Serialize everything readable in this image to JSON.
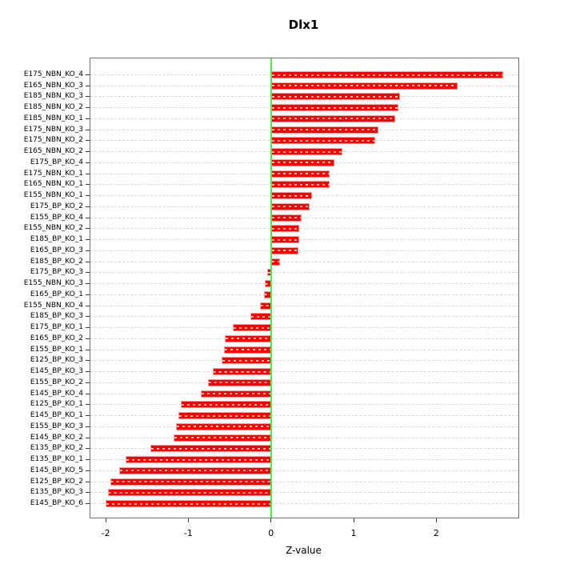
{
  "chart_data": {
    "type": "bar",
    "orientation": "horizontal",
    "title": "Dlx1",
    "xlabel": "Z-value",
    "xlim": [
      -2.185,
      2.994
    ],
    "x_ticks": [
      "-2",
      "-1",
      "0",
      "1",
      "2"
    ],
    "x_tick_values": [
      -2,
      -1,
      0,
      1,
      2
    ],
    "zero_line_value": 0,
    "grid": "dashed-horizontal-per-row",
    "legend": "none",
    "colors": {
      "bar_fill": "#ff0000",
      "bar_border": "#ffa0a0",
      "zero_line": "#46ef46",
      "grid_line": "#d8d8d8",
      "box_border": "#6f6f6f",
      "text": "#000000"
    },
    "categories": [
      "E175_NBN_KO_4",
      "E165_NBN_KO_3",
      "E185_NBN_KO_3",
      "E185_NBN_KO_2",
      "E185_NBN_KO_1",
      "E175_NBN_KO_3",
      "E175_NBN_KO_2",
      "E165_NBN_KO_2",
      "E175_BP_KO_4",
      "E175_NBN_KO_1",
      "E165_NBN_KO_1",
      "E155_NBN_KO_1",
      "E175_BP_KO_2",
      "E155_BP_KO_4",
      "E155_NBN_KO_2",
      "E185_BP_KO_1",
      "E165_BP_KO_3",
      "E185_BP_KO_2",
      "E175_BP_KO_3",
      "E155_NBN_KO_3",
      "E165_BP_KO_1",
      "E155_NBN_KO_4",
      "E185_BP_KO_3",
      "E175_BP_KO_1",
      "E165_BP_KO_2",
      "E155_BP_KO_1",
      "E125_BP_KO_3",
      "E145_BP_KO_3",
      "E155_BP_KO_2",
      "E145_BP_KO_4",
      "E125_BP_KO_1",
      "E145_BP_KO_1",
      "E155_BP_KO_3",
      "E145_BP_KO_2",
      "E135_BP_KO_2",
      "E135_BP_KO_1",
      "E145_BP_KO_5",
      "E125_BP_KO_2",
      "E135_BP_KO_3",
      "E145_BP_KO_6"
    ],
    "values": [
      2.81,
      2.26,
      1.56,
      1.54,
      1.5,
      1.3,
      1.26,
      0.86,
      0.77,
      0.71,
      0.71,
      0.5,
      0.47,
      0.37,
      0.34,
      0.34,
      0.33,
      0.11,
      -0.05,
      -0.07,
      -0.08,
      -0.13,
      -0.25,
      -0.46,
      -0.56,
      -0.57,
      -0.6,
      -0.7,
      -0.76,
      -0.85,
      -1.09,
      -1.12,
      -1.15,
      -1.18,
      -1.46,
      -1.76,
      -1.84,
      -1.94,
      -1.97,
      -2.0
    ]
  }
}
